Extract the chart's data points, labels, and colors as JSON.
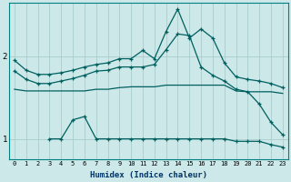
{
  "xlabel": "Humidex (Indice chaleur)",
  "bg_color": "#cce8e8",
  "grid_color": "#aacccc",
  "line_color": "#006060",
  "xlim": [
    -0.5,
    23.5
  ],
  "ylim": [
    0.75,
    2.65
  ],
  "yticks": [
    1,
    2
  ],
  "xticks": [
    0,
    1,
    2,
    3,
    4,
    5,
    6,
    7,
    8,
    9,
    10,
    11,
    12,
    13,
    14,
    15,
    16,
    17,
    18,
    19,
    20,
    21,
    22,
    23
  ],
  "series": {
    "line1_x": [
      0,
      1,
      2,
      3,
      4,
      5,
      6,
      7,
      8,
      9,
      10,
      11,
      12,
      13,
      14,
      15,
      16,
      17,
      18,
      19,
      20,
      21,
      22,
      23
    ],
    "line1_y": [
      1.95,
      1.83,
      1.78,
      1.78,
      1.8,
      1.83,
      1.87,
      1.9,
      1.92,
      1.97,
      1.97,
      2.07,
      1.97,
      2.3,
      2.57,
      2.22,
      2.33,
      2.22,
      1.92,
      1.75,
      1.72,
      1.7,
      1.67,
      1.62
    ],
    "line1_markers": [
      0,
      1,
      2,
      3,
      4,
      5,
      6,
      7,
      8,
      9,
      10,
      11,
      12,
      13,
      14,
      15,
      16,
      17,
      18,
      19,
      20,
      21,
      22,
      23
    ],
    "line2_x": [
      0,
      1,
      2,
      3,
      4,
      5,
      6,
      7,
      8,
      9,
      10,
      11,
      12,
      13,
      14,
      15,
      16,
      17,
      18,
      19,
      20,
      21,
      22,
      23
    ],
    "line2_y": [
      1.82,
      1.72,
      1.67,
      1.67,
      1.7,
      1.73,
      1.77,
      1.82,
      1.83,
      1.87,
      1.87,
      1.87,
      1.9,
      2.08,
      2.27,
      2.25,
      1.87,
      1.77,
      1.7,
      1.6,
      1.57,
      1.42,
      1.2,
      1.05
    ],
    "line3_x": [
      0,
      1,
      2,
      3,
      4,
      5,
      6,
      7,
      8,
      9,
      10,
      11,
      12,
      13,
      14,
      15,
      16,
      17,
      18,
      19,
      20,
      21,
      22,
      23
    ],
    "line3_y": [
      1.6,
      1.58,
      1.58,
      1.58,
      1.58,
      1.58,
      1.58,
      1.6,
      1.6,
      1.62,
      1.63,
      1.63,
      1.63,
      1.65,
      1.65,
      1.65,
      1.65,
      1.65,
      1.65,
      1.58,
      1.57,
      1.57,
      1.57,
      1.55
    ],
    "line4_x": [
      3,
      4,
      5,
      6,
      7,
      8,
      9,
      10,
      11,
      12,
      13,
      14,
      15,
      16,
      17,
      18,
      19,
      20,
      21,
      22,
      23
    ],
    "line4_y": [
      1.0,
      1.0,
      1.23,
      1.27,
      1.0,
      1.0,
      1.0,
      1.0,
      1.0,
      1.0,
      1.0,
      1.0,
      1.0,
      1.0,
      1.0,
      1.0,
      0.97,
      0.97,
      0.97,
      0.93,
      0.9
    ]
  }
}
